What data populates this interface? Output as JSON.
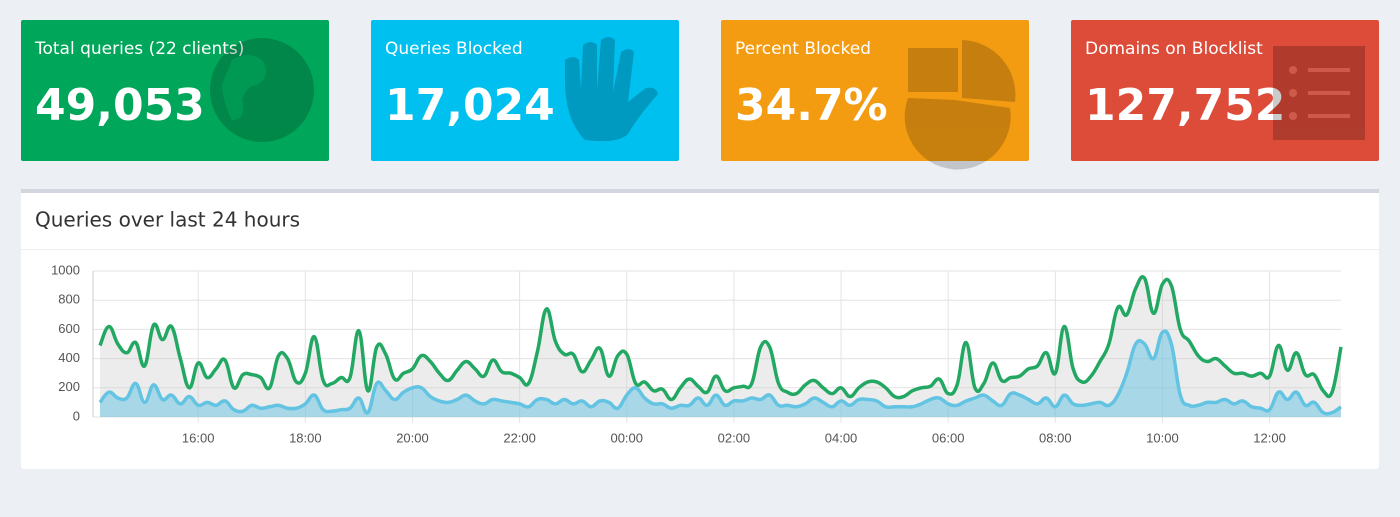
{
  "stats": [
    {
      "label": "Total queries (22 clients)",
      "value": "49,053",
      "color": "#00a65a"
    },
    {
      "label": "Queries Blocked",
      "value": "17,024",
      "color": "#00c0ef"
    },
    {
      "label": "Percent Blocked",
      "value": "34.7%",
      "color": "#f39c12"
    },
    {
      "label": "Domains on Blocklist",
      "value": "127,752",
      "color": "#dd4b39"
    }
  ],
  "chart_data": {
    "type": "line",
    "title": "Queries over last 24 hours",
    "x": [
      "14:10",
      "14:20",
      "14:30",
      "14:40",
      "14:50",
      "15:00",
      "15:10",
      "15:20",
      "15:30",
      "15:40",
      "15:50",
      "16:00",
      "16:10",
      "16:20",
      "16:30",
      "16:40",
      "16:50",
      "17:00",
      "17:10",
      "17:20",
      "17:30",
      "17:40",
      "17:50",
      "18:00",
      "18:10",
      "18:20",
      "18:30",
      "18:40",
      "18:50",
      "19:00",
      "19:10",
      "19:20",
      "19:30",
      "19:40",
      "19:50",
      "20:00",
      "20:10",
      "20:20",
      "20:30",
      "20:40",
      "20:50",
      "21:00",
      "21:10",
      "21:20",
      "21:30",
      "21:40",
      "21:50",
      "22:00",
      "22:10",
      "22:20",
      "22:30",
      "22:40",
      "22:50",
      "23:00",
      "23:10",
      "23:20",
      "23:30",
      "23:40",
      "23:50",
      "00:00",
      "00:10",
      "00:20",
      "00:30",
      "00:40",
      "00:50",
      "01:00",
      "01:10",
      "01:20",
      "01:30",
      "01:40",
      "01:50",
      "02:00",
      "02:10",
      "02:20",
      "02:30",
      "02:40",
      "02:50",
      "03:00",
      "03:10",
      "03:20",
      "03:30",
      "03:40",
      "03:50",
      "04:00",
      "04:10",
      "04:20",
      "04:30",
      "04:40",
      "04:50",
      "05:00",
      "05:10",
      "05:20",
      "05:30",
      "05:40",
      "05:50",
      "06:00",
      "06:10",
      "06:20",
      "06:30",
      "06:40",
      "06:50",
      "07:00",
      "07:10",
      "07:20",
      "07:30",
      "07:40",
      "07:50",
      "08:00",
      "08:10",
      "08:20",
      "08:30",
      "08:40",
      "08:50",
      "09:00",
      "09:10",
      "09:20",
      "09:30",
      "09:40",
      "09:50",
      "10:00",
      "10:10",
      "10:20",
      "10:30",
      "10:40",
      "10:50",
      "11:00",
      "11:10",
      "11:20",
      "11:30",
      "11:40",
      "11:50",
      "12:00",
      "12:10",
      "12:20",
      "12:30",
      "12:40",
      "12:50",
      "13:00",
      "13:10",
      "13:20"
    ],
    "series": [
      {
        "color": "#22a863",
        "fill": "rgba(200,200,200,0.35)",
        "values": [
          490,
          620,
          500,
          440,
          510,
          350,
          630,
          530,
          620,
          400,
          200,
          370,
          270,
          330,
          390,
          200,
          290,
          290,
          270,
          200,
          420,
          400,
          240,
          300,
          550,
          250,
          230,
          270,
          270,
          590,
          180,
          480,
          430,
          260,
          300,
          330,
          420,
          380,
          300,
          250,
          320,
          380,
          330,
          280,
          390,
          310,
          300,
          270,
          230,
          450,
          740,
          520,
          430,
          430,
          310,
          390,
          470,
          280,
          420,
          430,
          230,
          240,
          180,
          190,
          120,
          200,
          260,
          210,
          170,
          280,
          180,
          200,
          210,
          230,
          480,
          480,
          230,
          170,
          160,
          220,
          250,
          200,
          160,
          200,
          140,
          200,
          240,
          240,
          200,
          140,
          140,
          180,
          200,
          210,
          260,
          160,
          220,
          510,
          200,
          230,
          370,
          250,
          270,
          280,
          330,
          350,
          440,
          300,
          620,
          330,
          240,
          280,
          380,
          500,
          750,
          700,
          880,
          950,
          710,
          910,
          900,
          600,
          520,
          420,
          380,
          400,
          350,
          300,
          300,
          280,
          300,
          280,
          490,
          320,
          440,
          290,
          290,
          180,
          170,
          480
        ]
      },
      {
        "color": "#63c3e2",
        "fill": "rgba(99,195,226,0.5)",
        "values": [
          100,
          170,
          130,
          130,
          230,
          100,
          220,
          120,
          150,
          90,
          140,
          80,
          100,
          80,
          110,
          50,
          40,
          80,
          60,
          70,
          80,
          60,
          60,
          90,
          150,
          50,
          40,
          50,
          60,
          130,
          30,
          230,
          180,
          120,
          170,
          200,
          200,
          140,
          110,
          100,
          120,
          150,
          110,
          90,
          120,
          110,
          100,
          90,
          70,
          120,
          120,
          90,
          120,
          90,
          110,
          70,
          110,
          100,
          60,
          150,
          200,
          130,
          90,
          90,
          60,
          80,
          80,
          130,
          80,
          150,
          80,
          110,
          110,
          130,
          120,
          150,
          80,
          80,
          70,
          90,
          130,
          100,
          70,
          110,
          80,
          120,
          120,
          110,
          70,
          70,
          70,
          70,
          90,
          120,
          130,
          90,
          80,
          110,
          130,
          150,
          110,
          80,
          160,
          150,
          120,
          90,
          130,
          70,
          150,
          90,
          80,
          90,
          100,
          80,
          150,
          300,
          500,
          500,
          400,
          580,
          500,
          150,
          80,
          80,
          100,
          100,
          120,
          90,
          110,
          70,
          60,
          50,
          170,
          120,
          170,
          80,
          100,
          30,
          30,
          70
        ]
      }
    ],
    "ylim": [
      0,
      1000
    ],
    "yticks": [
      0,
      200,
      400,
      600,
      800,
      1000
    ],
    "xticks": [
      "16:00",
      "18:00",
      "20:00",
      "22:00",
      "00:00",
      "02:00",
      "04:00",
      "06:00",
      "08:00",
      "10:00",
      "12:00"
    ],
    "grid": true
  }
}
